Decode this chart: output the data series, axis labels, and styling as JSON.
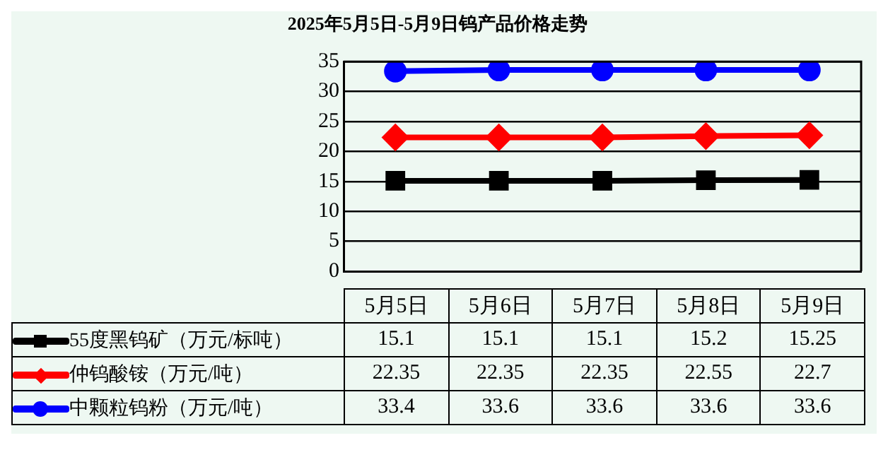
{
  "chart_data": {
    "type": "line",
    "title": "2025年5月5日-5月9日钨产品价格走势",
    "categories": [
      "5月5日",
      "5月6日",
      "5月7日",
      "5月8日",
      "5月9日"
    ],
    "series": [
      {
        "name": "55度黑钨矿（万元/标吨）",
        "color": "#000000",
        "marker": "square",
        "values": [
          15.1,
          15.1,
          15.1,
          15.2,
          15.25
        ]
      },
      {
        "name": "仲钨酸铵（万元/吨）",
        "color": "#ff0000",
        "marker": "diamond",
        "values": [
          22.35,
          22.35,
          22.35,
          22.55,
          22.7
        ]
      },
      {
        "name": "中颗粒钨粉（万元/吨）",
        "color": "#0000ff",
        "marker": "circle",
        "values": [
          33.4,
          33.6,
          33.6,
          33.6,
          33.6
        ]
      }
    ],
    "ylim": [
      0,
      35
    ],
    "yticks": [
      0,
      5,
      10,
      15,
      20,
      25,
      30,
      35
    ],
    "grid": "y",
    "legend": "bottom",
    "data_labels": true
  }
}
